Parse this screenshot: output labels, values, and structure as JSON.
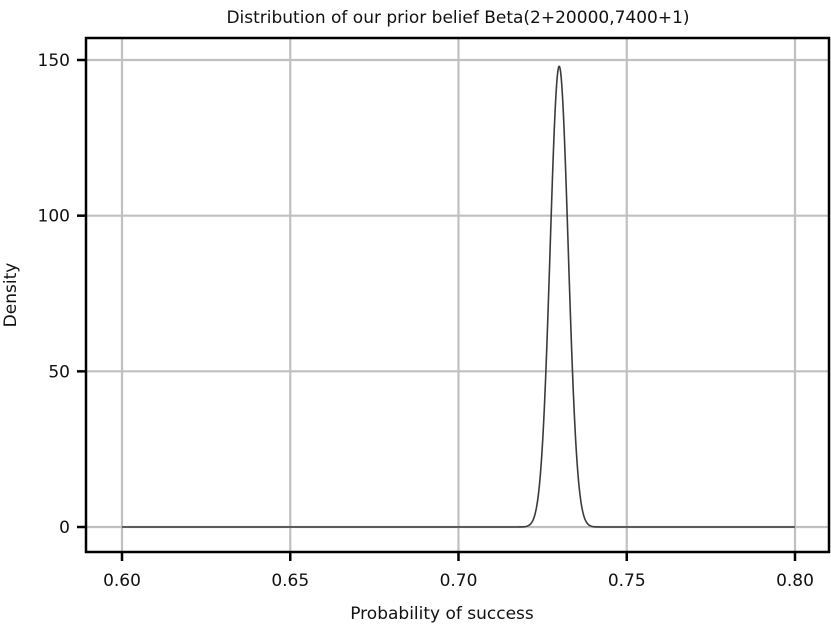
{
  "chart_data": {
    "type": "line",
    "title": "Distribution of our prior belief Beta(2+20000,7400+1)",
    "xlabel": "Probability of success",
    "ylabel": "Density",
    "xlim": [
      0.59,
      0.81
    ],
    "ylim": [
      -8,
      157
    ],
    "x_ticks": [
      0.6,
      0.65,
      0.7,
      0.75,
      0.8
    ],
    "x_tick_labels": [
      "0.60",
      "0.65",
      "0.70",
      "0.75",
      "0.80"
    ],
    "y_ticks": [
      0,
      50,
      100,
      150
    ],
    "y_tick_labels": [
      "0",
      "50",
      "100",
      "150"
    ],
    "grid": true,
    "legend": null,
    "series": [
      {
        "name": "Beta(20002, 7401) density",
        "color": "#3a3a3a",
        "distribution": {
          "family": "beta",
          "alpha": 20002,
          "beta": 7401
        },
        "x_range": [
          0.6,
          0.8
        ],
        "peak": {
          "x": 0.7297,
          "y": 148
        },
        "x": [
          0.6,
          0.7,
          0.715,
          0.72,
          0.7225,
          0.725,
          0.7275,
          0.7297,
          0.732,
          0.7345,
          0.737,
          0.74,
          0.745,
          0.76,
          0.8
        ],
        "y": [
          0,
          0,
          0.1,
          2,
          9,
          40,
          110,
          148,
          111,
          40,
          9,
          1,
          0,
          0,
          0
        ]
      }
    ]
  }
}
